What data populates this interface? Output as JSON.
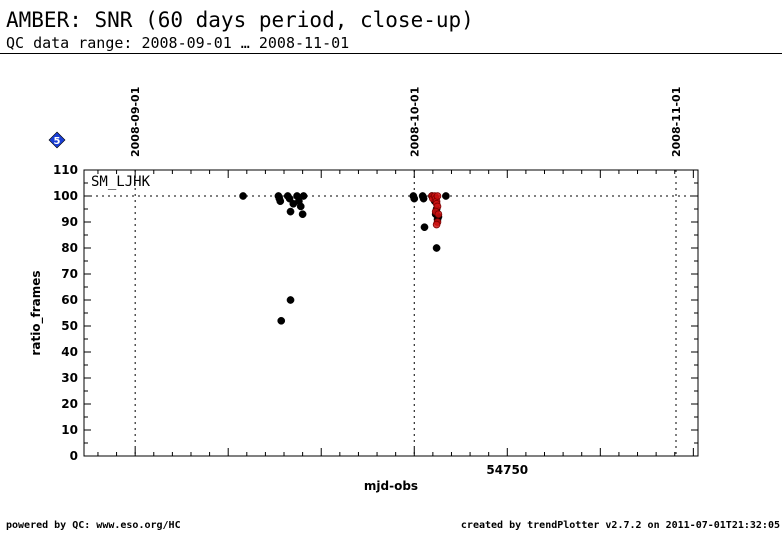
{
  "header": {
    "title": "AMBER: SNR (60 days period, close-up)",
    "subtitle": "QC data range: 2008-09-01 … 2008-11-01"
  },
  "footer": {
    "left": "powered by QC: www.eso.org/HC",
    "right": "created by trendPlotter v2.7.2 on 2011-07-01T21:32:05"
  },
  "badge": {
    "text": "5",
    "color": "#1a3fd6"
  },
  "chart_data": {
    "type": "scatter",
    "xlabel": "mjd-obs",
    "ylabel": "ratio_frames",
    "series_label": "SM_LJHK",
    "xlim": [
      54704.5,
      54770.5
    ],
    "ylim": [
      0,
      110
    ],
    "x_tick_labels": [
      {
        "value": 54750,
        "label": "54750"
      }
    ],
    "y_ticks": [
      0,
      10,
      20,
      30,
      40,
      50,
      60,
      70,
      80,
      90,
      100,
      110
    ],
    "reference_line": 100,
    "date_markers": [
      {
        "mjd": 54710,
        "label": "2008-09-01"
      },
      {
        "mjd": 54740,
        "label": "2008-10-01"
      },
      {
        "mjd": 54771,
        "label": "2008-11-01"
      }
    ],
    "series": [
      {
        "color": "#000000",
        "points": [
          [
            54721.6,
            100
          ],
          [
            54725.4,
            100
          ],
          [
            54725.5,
            99
          ],
          [
            54725.6,
            98
          ],
          [
            54726.4,
            100
          ],
          [
            54726.6,
            99
          ],
          [
            54727.0,
            97
          ],
          [
            54726.7,
            94
          ],
          [
            54727.4,
            100
          ],
          [
            54727.6,
            98
          ],
          [
            54727.8,
            96
          ],
          [
            54728.1,
            100
          ],
          [
            54728.0,
            93
          ],
          [
            54726.7,
            60
          ],
          [
            54725.7,
            52
          ],
          [
            54739.9,
            100
          ],
          [
            54740.0,
            99
          ],
          [
            54740.9,
            100
          ],
          [
            54741.0,
            99
          ],
          [
            54741.1,
            88
          ],
          [
            54741.9,
            100
          ],
          [
            54742.2,
            98
          ],
          [
            54742.4,
            95
          ],
          [
            54742.3,
            93
          ],
          [
            54742.6,
            92
          ],
          [
            54742.5,
            91
          ],
          [
            54742.4,
            80
          ],
          [
            54743.4,
            100
          ]
        ]
      },
      {
        "color": "#cc1111",
        "points": [
          [
            54741.9,
            100
          ],
          [
            54742.0,
            99
          ],
          [
            54742.2,
            100
          ],
          [
            54742.3,
            99
          ],
          [
            54742.4,
            98
          ],
          [
            54742.5,
            100
          ],
          [
            54742.4,
            97
          ],
          [
            54742.5,
            96
          ],
          [
            54742.3,
            94
          ],
          [
            54742.6,
            93
          ],
          [
            54742.5,
            90
          ],
          [
            54742.4,
            89
          ]
        ]
      }
    ]
  }
}
